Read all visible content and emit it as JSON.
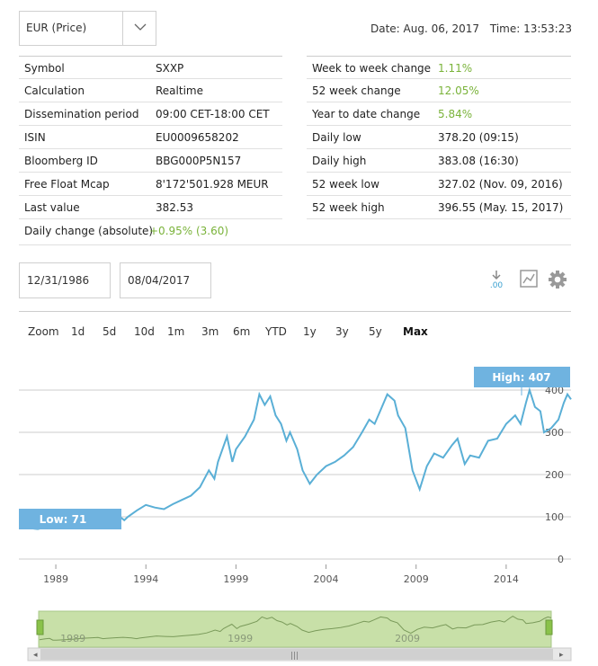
{
  "selector": {
    "value": "EUR (Price)"
  },
  "header": {
    "date_label": "Date: Aug. 06, 2017",
    "time_label": "Time: 13:53:23"
  },
  "left_table": [
    {
      "key": "Symbol",
      "value": "SXXP"
    },
    {
      "key": "Calculation",
      "value": "Realtime"
    },
    {
      "key": "Dissemination period",
      "value": "09:00 CET-18:00 CET"
    },
    {
      "key": "ISIN",
      "value": "EU0009658202"
    },
    {
      "key": "Bloomberg ID",
      "value": "BBG000P5N157"
    },
    {
      "key": "Free Float Mcap",
      "value": "8'172'501.928 MEUR"
    },
    {
      "key": "Last value",
      "value": "382.53"
    },
    {
      "key": "Daily change (absolute)",
      "value": "+0.95% (3.60)"
    }
  ],
  "right_table": [
    {
      "key": "Week to week change",
      "value": "1.11%"
    },
    {
      "key": "52 week change",
      "value": "12.05%"
    },
    {
      "key": "Year to date change",
      "value": "5.84%"
    },
    {
      "key": "Daily low",
      "value": "378.20 (09:15)"
    },
    {
      "key": "Daily high",
      "value": "383.08 (16:30)"
    },
    {
      "key": "52 week low",
      "value": "327.02 (Nov. 09, 2016)"
    },
    {
      "key": "52 week high",
      "value": "396.55 (May. 15, 2017)"
    }
  ],
  "date_range": {
    "from": "12/31/1986",
    "to": "08/04/2017"
  },
  "zoom": {
    "label": "Zoom",
    "options": [
      "1d",
      "5d",
      "10d",
      "1m",
      "3m",
      "6m",
      "YTD",
      "1y",
      "3y",
      "5y",
      "Max"
    ],
    "selected": "Max"
  },
  "colors": {
    "line": "#5aafd6",
    "accent": "#7ab33a",
    "flag": "#6fb3e0",
    "navigator": "#c8e0a8"
  },
  "icons": [
    "download-icon",
    "chart-icon",
    "gear-icon",
    "chevron-down-icon"
  ],
  "chart_data": {
    "type": "line",
    "x_tick_labels": [
      "1989",
      "1994",
      "1999",
      "2004",
      "2009",
      "2014"
    ],
    "y_tick_labels": [
      "0",
      "100",
      "200",
      "300",
      "400"
    ],
    "ylim": [
      0,
      420
    ],
    "xlim": [
      1986.95,
      2017.6
    ],
    "flags": {
      "high": "High: 407",
      "low": "Low: 71"
    },
    "series": [
      {
        "values": [
          [
            1987.0,
            78
          ],
          [
            1987.3,
            88
          ],
          [
            1987.6,
            95
          ],
          [
            1987.8,
            72
          ],
          [
            1988.0,
            71
          ],
          [
            1988.5,
            76
          ],
          [
            1989.0,
            84
          ],
          [
            1989.5,
            95
          ],
          [
            1990.0,
            102
          ],
          [
            1990.5,
            108
          ],
          [
            1990.8,
            92
          ],
          [
            1991.0,
            96
          ],
          [
            1991.5,
            104
          ],
          [
            1992.0,
            110
          ],
          [
            1992.5,
            102
          ],
          [
            1992.8,
            92
          ],
          [
            1993.0,
            100
          ],
          [
            1993.5,
            115
          ],
          [
            1994.0,
            128
          ],
          [
            1994.5,
            122
          ],
          [
            1995.0,
            118
          ],
          [
            1995.5,
            130
          ],
          [
            1996.0,
            140
          ],
          [
            1996.5,
            150
          ],
          [
            1997.0,
            170
          ],
          [
            1997.5,
            210
          ],
          [
            1997.8,
            190
          ],
          [
            1998.0,
            230
          ],
          [
            1998.5,
            290
          ],
          [
            1998.8,
            230
          ],
          [
            1999.0,
            260
          ],
          [
            1999.5,
            290
          ],
          [
            2000.0,
            330
          ],
          [
            2000.3,
            390
          ],
          [
            2000.6,
            365
          ],
          [
            2000.9,
            385
          ],
          [
            2001.2,
            340
          ],
          [
            2001.5,
            320
          ],
          [
            2001.8,
            280
          ],
          [
            2002.0,
            300
          ],
          [
            2002.4,
            260
          ],
          [
            2002.7,
            210
          ],
          [
            2003.1,
            178
          ],
          [
            2003.5,
            200
          ],
          [
            2004.0,
            220
          ],
          [
            2004.5,
            230
          ],
          [
            2005.0,
            245
          ],
          [
            2005.5,
            265
          ],
          [
            2006.0,
            300
          ],
          [
            2006.4,
            330
          ],
          [
            2006.7,
            320
          ],
          [
            2007.0,
            350
          ],
          [
            2007.4,
            390
          ],
          [
            2007.8,
            375
          ],
          [
            2008.0,
            340
          ],
          [
            2008.4,
            310
          ],
          [
            2008.8,
            210
          ],
          [
            2009.2,
            165
          ],
          [
            2009.6,
            220
          ],
          [
            2010.0,
            250
          ],
          [
            2010.5,
            240
          ],
          [
            2011.0,
            270
          ],
          [
            2011.3,
            285
          ],
          [
            2011.7,
            225
          ],
          [
            2012.0,
            245
          ],
          [
            2012.5,
            240
          ],
          [
            2013.0,
            280
          ],
          [
            2013.5,
            285
          ],
          [
            2014.0,
            320
          ],
          [
            2014.5,
            340
          ],
          [
            2014.8,
            320
          ],
          [
            2015.1,
            370
          ],
          [
            2015.3,
            400
          ],
          [
            2015.6,
            360
          ],
          [
            2015.9,
            350
          ],
          [
            2016.1,
            300
          ],
          [
            2016.5,
            310
          ],
          [
            2016.9,
            330
          ],
          [
            2017.2,
            370
          ],
          [
            2017.4,
            390
          ],
          [
            2017.6,
            378
          ]
        ]
      }
    ],
    "navigator": {
      "x_tick_labels": [
        "1989",
        "1999",
        "2009"
      ]
    }
  }
}
